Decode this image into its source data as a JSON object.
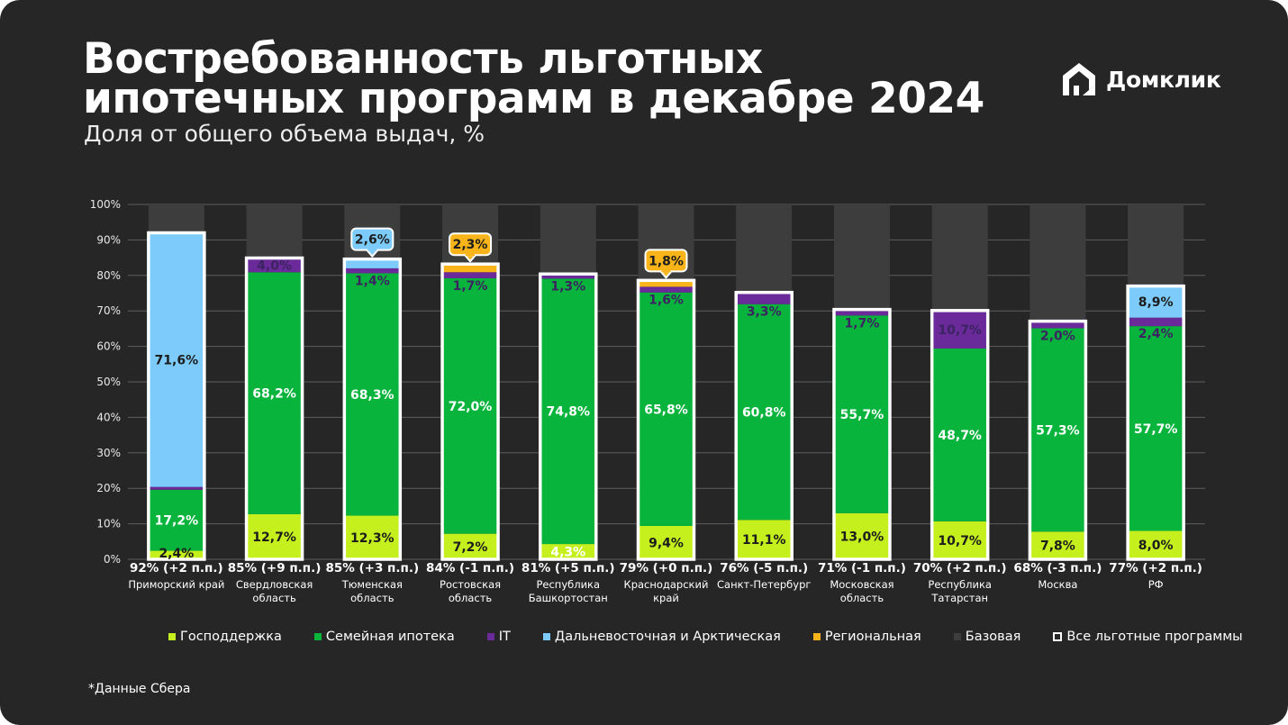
{
  "header": {
    "title_line1": "Востребованность льготных",
    "title_line2": "ипотечных программ в декабре 2024",
    "subtitle": "Доля от общего объема выдач, %"
  },
  "brand": {
    "name": "Домклик",
    "icon": "house-logo-icon"
  },
  "footnote": "*Данные Сбера",
  "colors": {
    "background": "#262626",
    "gospodderzhka": "#c5f01e",
    "family": "#08b43c",
    "it": "#6b2a9a",
    "far_east": "#7ccbfb",
    "regional": "#f8b418",
    "base": "#3d3d3d",
    "grid": "#5e5e5e"
  },
  "legend": [
    {
      "label": "Господдержка",
      "color": "#c5f01e"
    },
    {
      "label": "Семейная ипотека",
      "color": "#08b43c"
    },
    {
      "label": "IT",
      "color": "#6b2a9a"
    },
    {
      "label": "Дальневосточная и Арктическая",
      "color": "#7ccbfb"
    },
    {
      "label": "Региональная",
      "color": "#f8b418"
    },
    {
      "label": "Базовая",
      "color": "#3d3d3d"
    },
    {
      "label": "Все льготные программы",
      "color": "#ffffff",
      "outline": true
    }
  ],
  "chart_data": {
    "type": "bar",
    "stacked": true,
    "title": "Востребованность льготных ипотечных программ в декабре 2024",
    "ylabel": "Доля от общего объема выдач, %",
    "ylim": [
      0,
      100
    ],
    "yticks": [
      "0%",
      "10%",
      "20%",
      "30%",
      "40%",
      "50%",
      "60%",
      "70%",
      "80%",
      "90%",
      "100%"
    ],
    "grid": true,
    "legend_position": "bottom",
    "categories": [
      [
        "Приморский край"
      ],
      [
        "Свердловская",
        "область"
      ],
      [
        "Тюменская",
        "область"
      ],
      [
        "Ростовская",
        "область"
      ],
      [
        "Республика",
        "Башкортостан"
      ],
      [
        "Краснодарский",
        "край"
      ],
      [
        "Санкт-Петербург"
      ],
      [
        "Московская",
        "область"
      ],
      [
        "Республика",
        "Татарстан"
      ],
      [
        "Москва"
      ],
      [
        "РФ"
      ]
    ],
    "totals": [
      "92% (+2 п.п.)",
      "85% (+9 п.п.)",
      "85% (+3 п.п.)",
      "84% (-1 п.п.)",
      "81% (+5 п.п.)",
      "79% (+0 п.п.)",
      "76% (-5 п.п.)",
      "71% (-1 п.п.)",
      "70% (+2 п.п.)",
      "68% (-3 п.п.)",
      "77% (+2 п.п.)"
    ],
    "series": [
      {
        "name": "Господдержка",
        "key": "gospodderzhka",
        "values": [
          2.4,
          12.7,
          12.3,
          7.2,
          4.3,
          9.4,
          11.1,
          13.0,
          10.7,
          7.8,
          8.0
        ],
        "labels": [
          "2,4%",
          "12,7%",
          "12,3%",
          "7,2%",
          "4,3%",
          "9,4%",
          "11,1%",
          "13,0%",
          "10,7%",
          "7,8%",
          "8,0%"
        ]
      },
      {
        "name": "Семейная ипотека",
        "key": "family",
        "values": [
          17.2,
          68.2,
          68.3,
          72.0,
          74.8,
          65.8,
          60.8,
          55.7,
          48.7,
          57.3,
          57.7
        ],
        "labels": [
          "17,2%",
          "68,2%",
          "68,3%",
          "72,0%",
          "74,8%",
          "65,8%",
          "60,8%",
          "55,7%",
          "48,7%",
          "57,3%",
          "57,7%"
        ]
      },
      {
        "name": "IT",
        "key": "it",
        "values": [
          0.8,
          4.0,
          1.4,
          1.7,
          1.3,
          1.6,
          3.3,
          1.7,
          10.7,
          2.0,
          2.4
        ],
        "labels": [
          null,
          "4,0%",
          "1,4%",
          "1,7%",
          "1,3%",
          "1,6%",
          "3,3%",
          "1,7%",
          "10,7%",
          "2,0%",
          "2,4%"
        ]
      },
      {
        "name": "Дальневосточная и Арктическая",
        "key": "far_east",
        "values": [
          71.6,
          0,
          2.6,
          0,
          0,
          0,
          0,
          0,
          0,
          0,
          8.9
        ],
        "labels": [
          "71,6%",
          null,
          "2,6%",
          null,
          null,
          null,
          null,
          null,
          null,
          null,
          "8,9%"
        ]
      },
      {
        "name": "Региональная",
        "key": "regional",
        "values": [
          0,
          0,
          0,
          2.3,
          0,
          1.8,
          0,
          0,
          0,
          0,
          0
        ],
        "labels": [
          null,
          null,
          null,
          "2,3%",
          null,
          "1,8%",
          null,
          null,
          null,
          null,
          null
        ]
      },
      {
        "name": "Базовая",
        "key": "base",
        "values": [
          8.0,
          15.1,
          15.4,
          16.8,
          19.6,
          21.4,
          24.8,
          29.6,
          29.9,
          32.9,
          23.0
        ],
        "labels": [
          null,
          null,
          null,
          null,
          null,
          null,
          null,
          null,
          null,
          null,
          null
        ]
      }
    ],
    "callouts": [
      {
        "category_index": 2,
        "series": "far_east",
        "label": "2,6%"
      },
      {
        "category_index": 3,
        "series": "regional",
        "label": "2,3%"
      },
      {
        "category_index": 5,
        "series": "regional",
        "label": "1,8%"
      }
    ]
  }
}
